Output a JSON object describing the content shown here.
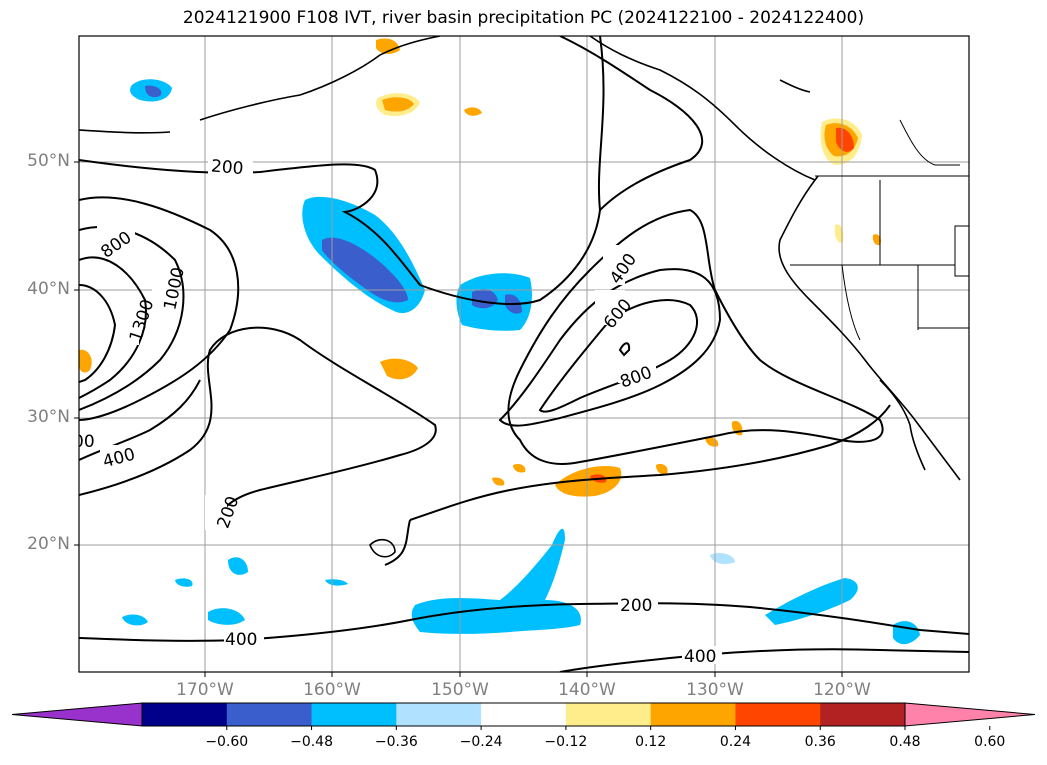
{
  "title": "2024121900 F108 IVT, river basin precipitation PC (2024122100 - 2024122400)",
  "lat_labels": [
    "50°N",
    "40°N",
    "30°N",
    "20°N"
  ],
  "lon_labels": [
    "170°W",
    "160°W",
    "150°W",
    "140°W",
    "130°W",
    "120°W"
  ],
  "contour_labels": [
    "200",
    "800",
    "1000",
    "1300",
    "400",
    "200",
    "400",
    "600",
    "800",
    "200",
    "400",
    "400",
    "00"
  ],
  "colorbar": {
    "ticks": [
      "−0.60",
      "−0.48",
      "−0.36",
      "−0.24",
      "−0.12",
      "0.12",
      "0.24",
      "0.36",
      "0.48",
      "0.60"
    ],
    "colors": [
      "#9932cc",
      "#00008b",
      "#3a5fcd",
      "#00bfff",
      "#b0e2ff",
      "#ffffff",
      "#ffec8b",
      "#ffa500",
      "#ff4500",
      "#b22222",
      "#ff82ab"
    ]
  },
  "shading_colors": {
    "light_blue": "#b0e2ff",
    "blue": "#00bfff",
    "royal_blue": "#3a5fcd",
    "yellow": "#ffec8b",
    "orange": "#ffa500",
    "red_orange": "#ff4500"
  }
}
